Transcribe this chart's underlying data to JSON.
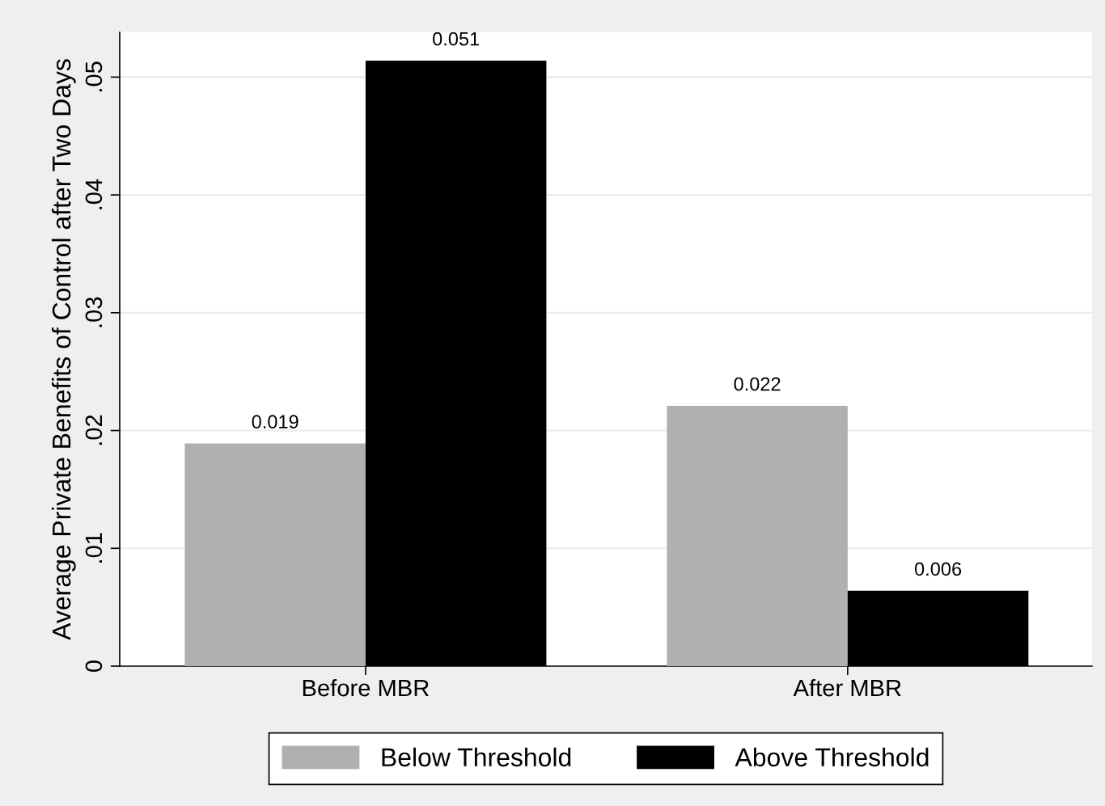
{
  "chart_data": {
    "type": "bar",
    "ylabel": "Average Private Benefits of Control after Two Days",
    "categories": [
      "Before MBR",
      "After MBR"
    ],
    "series": [
      {
        "name": "Below Threshold",
        "color": "#b0b0b0",
        "values": [
          0.0189,
          0.0221
        ],
        "value_labels": [
          "0.019",
          "0.022"
        ]
      },
      {
        "name": "Above Threshold",
        "color": "#000000",
        "values": [
          0.0514,
          0.0064
        ],
        "value_labels": [
          "0.051",
          "0.006"
        ]
      }
    ],
    "ylim": [
      0,
      0.0538
    ],
    "yticks": [
      0,
      {
        "value": 0.01,
        "label": ".01"
      },
      {
        "value": 0.02,
        "label": ".02"
      },
      {
        "value": 0.03,
        "label": ".03"
      },
      {
        "value": 0.04,
        "label": ".04"
      },
      {
        "value": 0.05,
        "label": ".05"
      }
    ],
    "grid": "y",
    "legend": "bottom"
  }
}
